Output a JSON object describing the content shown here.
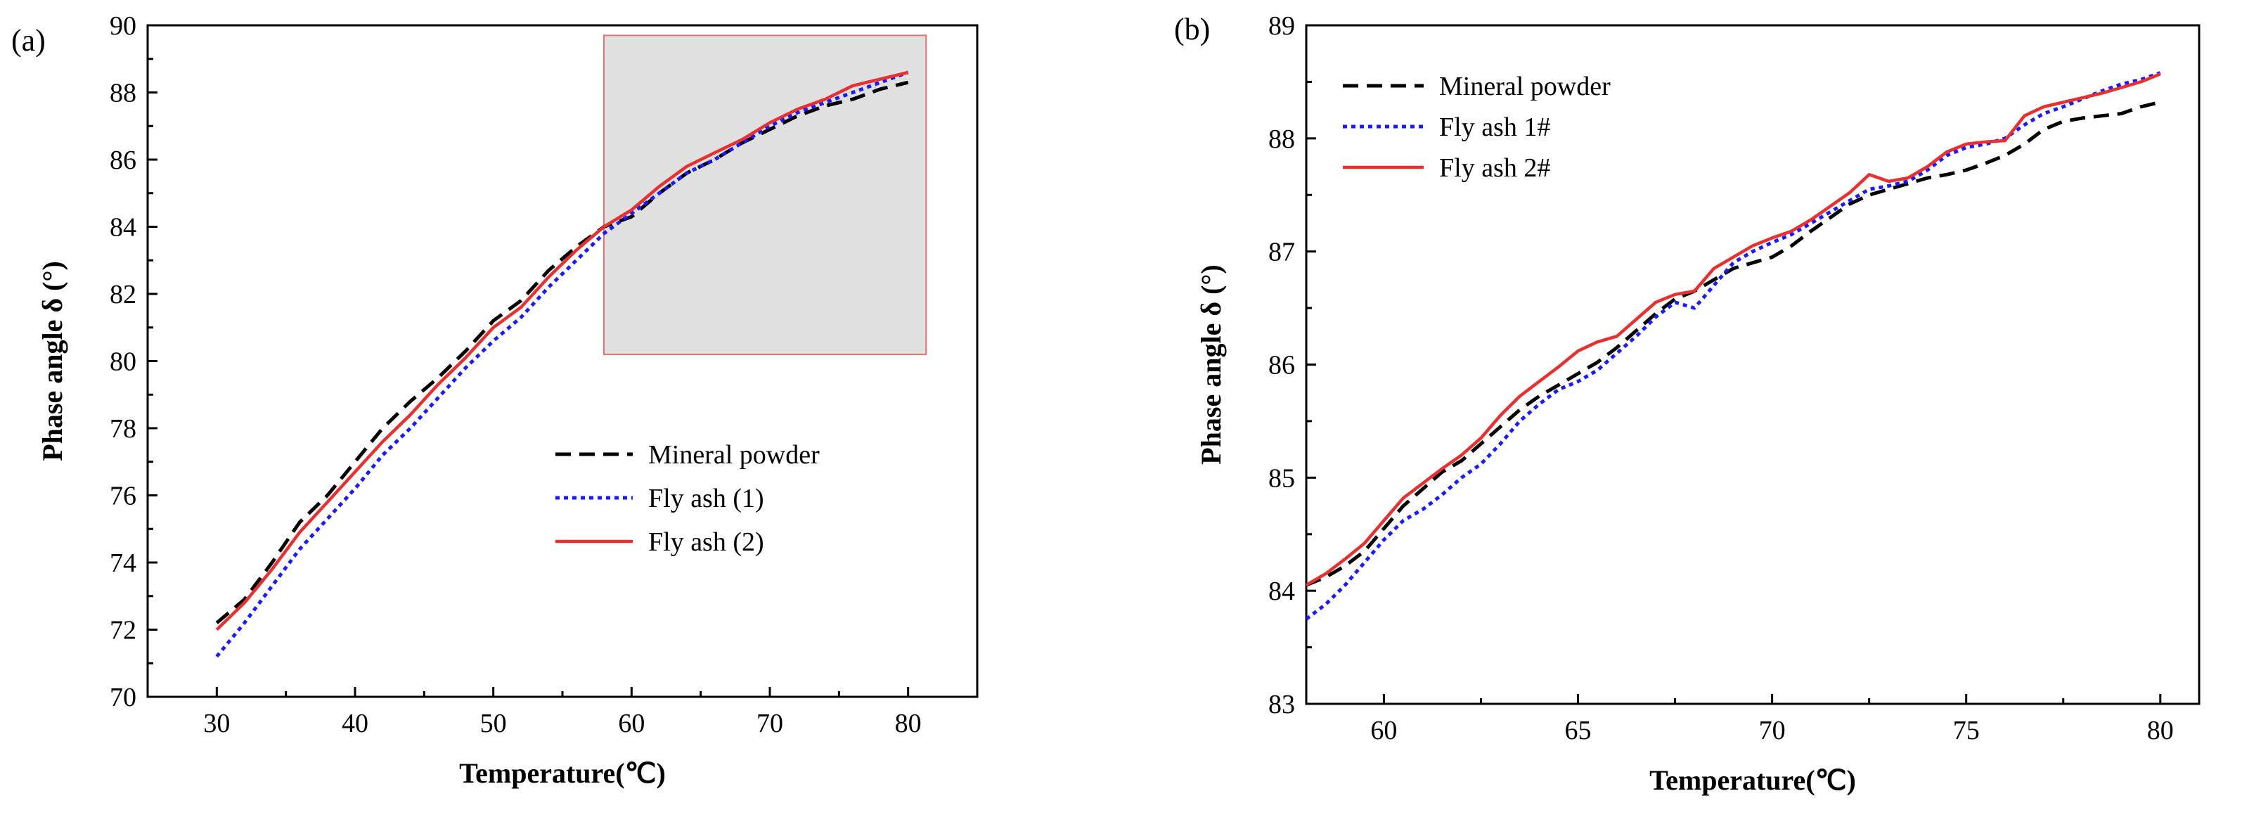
{
  "chart_data": [
    {
      "type": "line",
      "panel_label": "(a)",
      "xlabel": "Temperature(℃)",
      "ylabel": "Phase angle δ (°)",
      "xlim": [
        25,
        85
      ],
      "ylim": [
        70,
        90
      ],
      "xticks": [
        30,
        40,
        50,
        60,
        70,
        80
      ],
      "yticks": [
        70,
        72,
        74,
        76,
        78,
        80,
        82,
        84,
        86,
        88,
        90
      ],
      "highlight_region": {
        "x": [
          58,
          81.3
        ],
        "y": [
          80.2,
          89.7
        ],
        "color": "#e0e0e0",
        "border": "#e87070"
      },
      "legend_position": "lower-right",
      "series": [
        {
          "name": "Mineral powder",
          "color": "#000000",
          "style": "dashed",
          "x": [
            30,
            32,
            34,
            36,
            38,
            40,
            42,
            44,
            46,
            48,
            50,
            52,
            54,
            56,
            58,
            60,
            62,
            64,
            66,
            68,
            70,
            72,
            74,
            76,
            78,
            80
          ],
          "y": [
            72.2,
            72.9,
            74.0,
            75.2,
            76.0,
            77.0,
            78.0,
            78.8,
            79.5,
            80.3,
            81.2,
            81.8,
            82.7,
            83.4,
            84.0,
            84.3,
            85.0,
            85.6,
            86.0,
            86.5,
            86.9,
            87.3,
            87.6,
            87.8,
            88.1,
            88.3
          ]
        },
        {
          "name": "Fly ash (1)",
          "color": "#1a1aff",
          "style": "dotted",
          "x": [
            30,
            32,
            34,
            36,
            38,
            40,
            42,
            44,
            46,
            48,
            50,
            52,
            54,
            56,
            58,
            60,
            62,
            64,
            66,
            68,
            70,
            72,
            74,
            76,
            78,
            80
          ],
          "y": [
            71.2,
            72.2,
            73.3,
            74.4,
            75.3,
            76.2,
            77.2,
            78.0,
            78.9,
            79.8,
            80.6,
            81.3,
            82.2,
            83.0,
            83.8,
            84.4,
            85.0,
            85.6,
            86.0,
            86.5,
            87.0,
            87.4,
            87.7,
            88.0,
            88.3,
            88.6
          ]
        },
        {
          "name": "Fly ash (2)",
          "color": "#e83030",
          "style": "solid",
          "x": [
            30,
            32,
            34,
            36,
            38,
            40,
            42,
            44,
            46,
            48,
            50,
            52,
            54,
            56,
            58,
            60,
            62,
            64,
            66,
            68,
            70,
            72,
            74,
            76,
            78,
            80
          ],
          "y": [
            72.0,
            72.8,
            73.8,
            74.9,
            75.8,
            76.7,
            77.6,
            78.4,
            79.3,
            80.1,
            81.0,
            81.6,
            82.5,
            83.3,
            84.0,
            84.5,
            85.2,
            85.8,
            86.2,
            86.6,
            87.1,
            87.5,
            87.8,
            88.2,
            88.4,
            88.6
          ]
        }
      ]
    },
    {
      "type": "line",
      "panel_label": "(b)",
      "xlabel": "Temperature(℃)",
      "ylabel": "Phase angle δ (°)",
      "xlim": [
        58,
        81
      ],
      "ylim": [
        83,
        89
      ],
      "xticks": [
        60,
        65,
        70,
        75,
        80
      ],
      "yticks": [
        83,
        84,
        85,
        86,
        87,
        88,
        89
      ],
      "legend_position": "top-left",
      "series": [
        {
          "name": "Mineral powder",
          "color": "#000000",
          "style": "dashed",
          "x": [
            58,
            58.5,
            59,
            59.5,
            60,
            60.5,
            61,
            61.5,
            62,
            62.5,
            63,
            63.5,
            64,
            64.5,
            65,
            65.5,
            66,
            66.5,
            67,
            67.5,
            68,
            68.5,
            69,
            69.5,
            70,
            70.5,
            71,
            71.5,
            72,
            72.5,
            73,
            73.5,
            74,
            74.5,
            75,
            75.5,
            76,
            76.5,
            77,
            77.5,
            78,
            78.5,
            79,
            79.5,
            80
          ],
          "y": [
            84.05,
            84.12,
            84.22,
            84.35,
            84.55,
            84.75,
            84.9,
            85.05,
            85.15,
            85.3,
            85.45,
            85.6,
            85.72,
            85.82,
            85.92,
            86.02,
            86.15,
            86.3,
            86.45,
            86.58,
            86.65,
            86.75,
            86.85,
            86.9,
            86.95,
            87.05,
            87.18,
            87.3,
            87.42,
            87.5,
            87.55,
            87.6,
            87.65,
            87.68,
            87.72,
            87.78,
            87.85,
            87.95,
            88.08,
            88.15,
            88.18,
            88.2,
            88.22,
            88.28,
            88.32
          ]
        },
        {
          "name": "Fly ash 1#",
          "color": "#1a1aff",
          "style": "dotted",
          "x": [
            58,
            58.5,
            59,
            59.5,
            60,
            60.5,
            61,
            61.5,
            62,
            62.5,
            63,
            63.5,
            64,
            64.5,
            65,
            65.5,
            66,
            66.5,
            67,
            67.5,
            68,
            68.5,
            69,
            69.5,
            70,
            70.5,
            71,
            71.5,
            72,
            72.5,
            73,
            73.5,
            74,
            74.5,
            75,
            75.5,
            76,
            76.5,
            77,
            77.5,
            78,
            78.5,
            79,
            79.5,
            80
          ],
          "y": [
            83.75,
            83.88,
            84.05,
            84.25,
            84.45,
            84.62,
            84.72,
            84.85,
            85.0,
            85.12,
            85.3,
            85.5,
            85.65,
            85.78,
            85.85,
            85.95,
            86.1,
            86.25,
            86.42,
            86.55,
            86.5,
            86.7,
            86.9,
            87.0,
            87.08,
            87.15,
            87.25,
            87.35,
            87.45,
            87.55,
            87.58,
            87.62,
            87.72,
            87.85,
            87.92,
            87.95,
            88.0,
            88.12,
            88.22,
            88.28,
            88.35,
            88.42,
            88.48,
            88.52,
            88.58
          ]
        },
        {
          "name": "Fly ash 2#",
          "color": "#e83030",
          "style": "solid",
          "x": [
            58,
            58.5,
            59,
            59.5,
            60,
            60.5,
            61,
            61.5,
            62,
            62.5,
            63,
            63.5,
            64,
            64.5,
            65,
            65.5,
            66,
            66.5,
            67,
            67.5,
            68,
            68.5,
            69,
            69.5,
            70,
            70.5,
            71,
            71.5,
            72,
            72.5,
            73,
            73.5,
            74,
            74.5,
            75,
            75.5,
            76,
            76.5,
            77,
            77.5,
            78,
            78.5,
            79,
            79.5,
            80
          ],
          "y": [
            84.05,
            84.15,
            84.28,
            84.42,
            84.62,
            84.82,
            84.95,
            85.08,
            85.2,
            85.35,
            85.55,
            85.72,
            85.85,
            85.98,
            86.12,
            86.2,
            86.25,
            86.4,
            86.55,
            86.62,
            86.65,
            86.85,
            86.95,
            87.05,
            87.12,
            87.18,
            87.28,
            87.4,
            87.52,
            87.68,
            87.62,
            87.65,
            87.75,
            87.88,
            87.95,
            87.97,
            87.98,
            88.2,
            88.28,
            88.32,
            88.36,
            88.4,
            88.45,
            88.5,
            88.57
          ]
        }
      ]
    }
  ]
}
